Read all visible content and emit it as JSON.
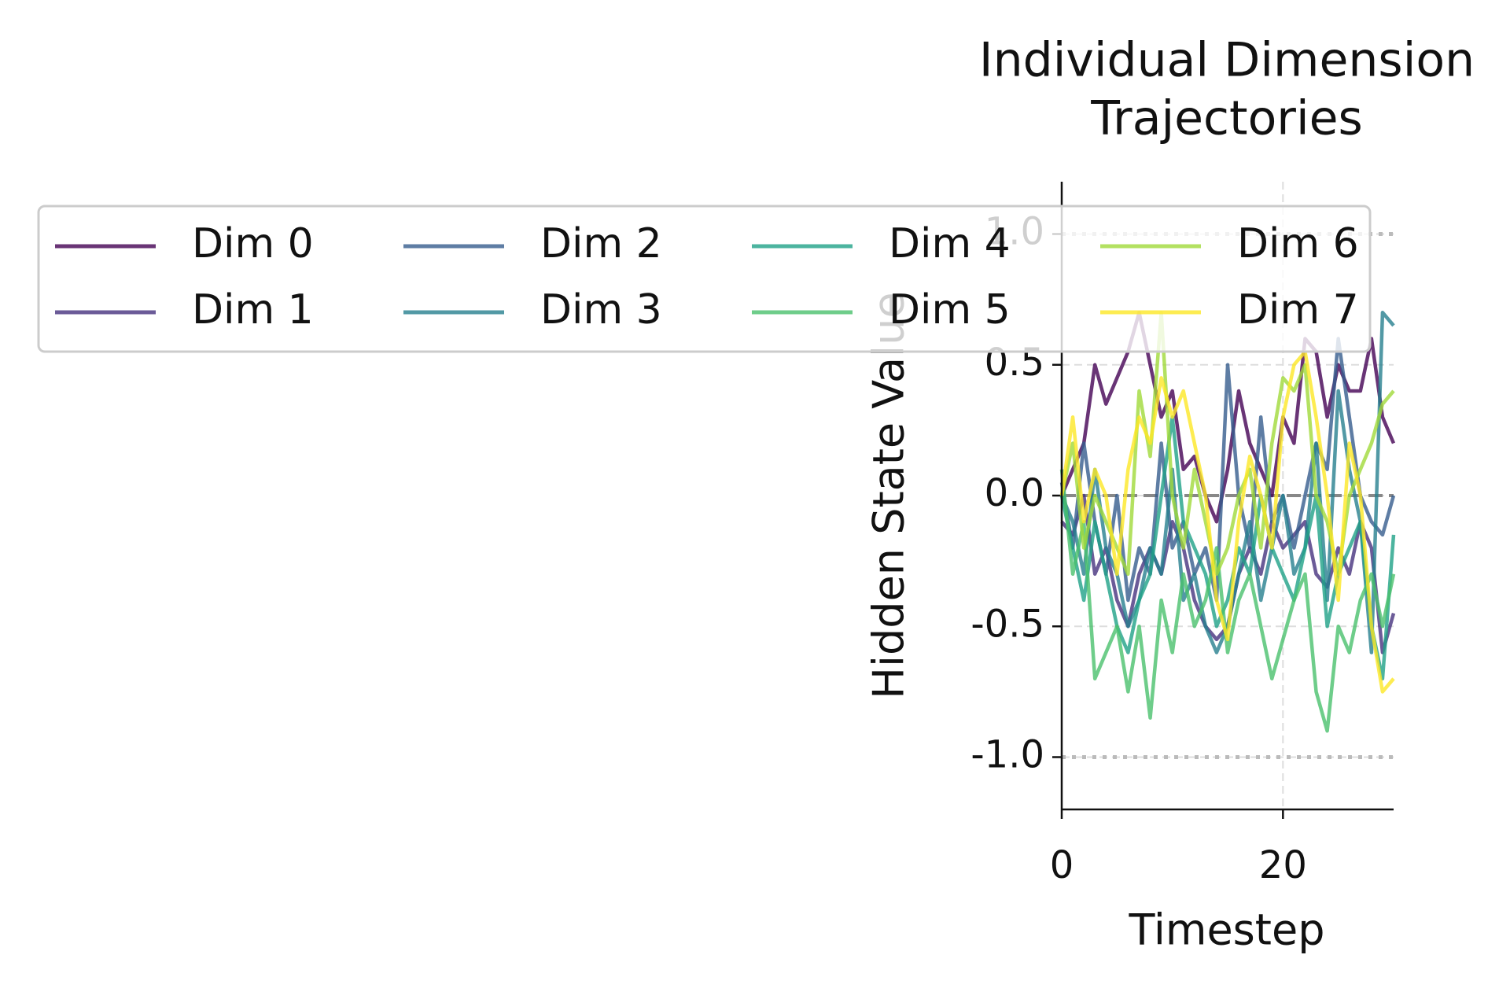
{
  "chart_data": {
    "type": "line",
    "title": [
      "Individual Dimension",
      "Trajectories"
    ],
    "x_label": "Timestep",
    "y_label": "Hidden State Value",
    "x": [
      0,
      1,
      2,
      3,
      4,
      5,
      6,
      7,
      8,
      9,
      10,
      11,
      12,
      13,
      14,
      15,
      16,
      17,
      18,
      19,
      20,
      21,
      22,
      23,
      24,
      25,
      26,
      27,
      28,
      29,
      30
    ],
    "xlim": [
      0,
      30
    ],
    "xticks": [
      0,
      20
    ],
    "ylim": [
      -1.2,
      1.2
    ],
    "yticks": [
      {
        "value": -1,
        "label": "-1.0"
      },
      {
        "value": -0.5,
        "label": "-0.5"
      },
      {
        "value": 0,
        "label": "0.0"
      },
      {
        "value": 0.5,
        "label": "0.5"
      },
      {
        "value": 1,
        "label": "1.0"
      }
    ],
    "grid": true,
    "hlines": [
      {
        "value": 0,
        "style": "dashed"
      },
      {
        "value": 1,
        "style": "dotted"
      },
      {
        "value": -1,
        "style": "dotted"
      }
    ],
    "legend_position": "top-left",
    "legend_columns": 4,
    "series": [
      {
        "name": "Dim 0",
        "color": "#440154",
        "values": [
          0.0,
          0.1,
          0.2,
          0.5,
          0.35,
          0.45,
          0.55,
          0.7,
          0.5,
          0.3,
          0.4,
          0.1,
          0.15,
          0.0,
          -0.1,
          0.1,
          0.4,
          0.2,
          0.1,
          0.0,
          0.3,
          0.2,
          0.6,
          0.55,
          0.3,
          0.5,
          0.4,
          0.4,
          0.6,
          0.3,
          0.2
        ]
      },
      {
        "name": "Dim 1",
        "color": "#46327e",
        "values": [
          -0.1,
          -0.15,
          0.0,
          -0.3,
          -0.2,
          -0.4,
          -0.5,
          -0.3,
          -0.2,
          -0.3,
          -0.1,
          -0.2,
          -0.4,
          -0.5,
          -0.55,
          -0.5,
          -0.3,
          -0.2,
          -0.3,
          -0.1,
          -0.2,
          -0.15,
          -0.1,
          -0.3,
          -0.35,
          -0.2,
          -0.3,
          -0.1,
          -0.2,
          -0.6,
          -0.45
        ]
      },
      {
        "name": "Dim 2",
        "color": "#365c8d",
        "values": [
          0.05,
          -0.2,
          0.2,
          -0.1,
          -0.3,
          0.0,
          -0.4,
          -0.2,
          -0.3,
          0.2,
          -0.2,
          -0.1,
          -0.3,
          -0.2,
          -0.4,
          0.5,
          0.0,
          -0.2,
          0.3,
          -0.1,
          0.0,
          -0.2,
          0.0,
          0.2,
          0.1,
          0.6,
          0.3,
          0.0,
          -0.1,
          -0.15,
          0.0
        ]
      },
      {
        "name": "Dim 3",
        "color": "#277f8e",
        "values": [
          0.0,
          -0.1,
          -0.3,
          0.1,
          -0.2,
          -0.3,
          -0.5,
          -0.4,
          -0.2,
          -0.3,
          0.1,
          -0.4,
          -0.3,
          -0.5,
          -0.6,
          -0.5,
          -0.3,
          -0.1,
          -0.4,
          -0.2,
          0.0,
          -0.3,
          -0.2,
          0.2,
          -0.4,
          0.4,
          0.1,
          -0.1,
          -0.6,
          0.7,
          0.65
        ]
      },
      {
        "name": "Dim 4",
        "color": "#1fa187",
        "values": [
          0.0,
          -0.2,
          -0.4,
          -0.1,
          -0.3,
          -0.5,
          -0.6,
          -0.4,
          -0.3,
          0.0,
          0.3,
          -0.1,
          -0.2,
          -0.3,
          -0.5,
          -0.4,
          -0.2,
          -0.3,
          0.0,
          -0.2,
          -0.3,
          -0.4,
          -0.2,
          0.0,
          -0.5,
          -0.3,
          -0.2,
          -0.1,
          -0.5,
          -0.7,
          -0.15
        ]
      },
      {
        "name": "Dim 5",
        "color": "#4ac16d",
        "values": [
          0.1,
          -0.3,
          -0.1,
          -0.7,
          -0.6,
          -0.5,
          -0.75,
          -0.5,
          -0.85,
          -0.4,
          -0.6,
          -0.3,
          -0.5,
          -0.4,
          -0.2,
          -0.6,
          -0.4,
          -0.3,
          -0.5,
          -0.7,
          -0.55,
          -0.4,
          -0.3,
          -0.75,
          -0.9,
          -0.5,
          -0.6,
          -0.4,
          -0.3,
          -0.5,
          -0.3
        ]
      },
      {
        "name": "Dim 6",
        "color": "#a0da39",
        "values": [
          0.0,
          0.2,
          -0.2,
          0.0,
          -0.1,
          -0.2,
          -0.3,
          0.4,
          0.15,
          0.7,
          0.0,
          -0.2,
          0.1,
          -0.1,
          -0.3,
          -0.2,
          0.0,
          0.1,
          -0.2,
          0.2,
          0.45,
          0.4,
          0.5,
          0.0,
          -0.1,
          -0.3,
          0.0,
          0.1,
          0.2,
          0.35,
          0.4
        ]
      },
      {
        "name": "Dim 7",
        "color": "#fde725",
        "values": [
          0.0,
          0.3,
          -0.1,
          0.1,
          0.0,
          -0.3,
          0.1,
          0.3,
          0.2,
          0.45,
          0.3,
          0.4,
          0.2,
          0.0,
          -0.4,
          -0.55,
          -0.1,
          0.15,
          0.0,
          -0.2,
          0.3,
          0.5,
          0.55,
          0.3,
          0.0,
          -0.4,
          0.2,
          0.0,
          -0.5,
          -0.75,
          -0.7
        ]
      }
    ]
  }
}
